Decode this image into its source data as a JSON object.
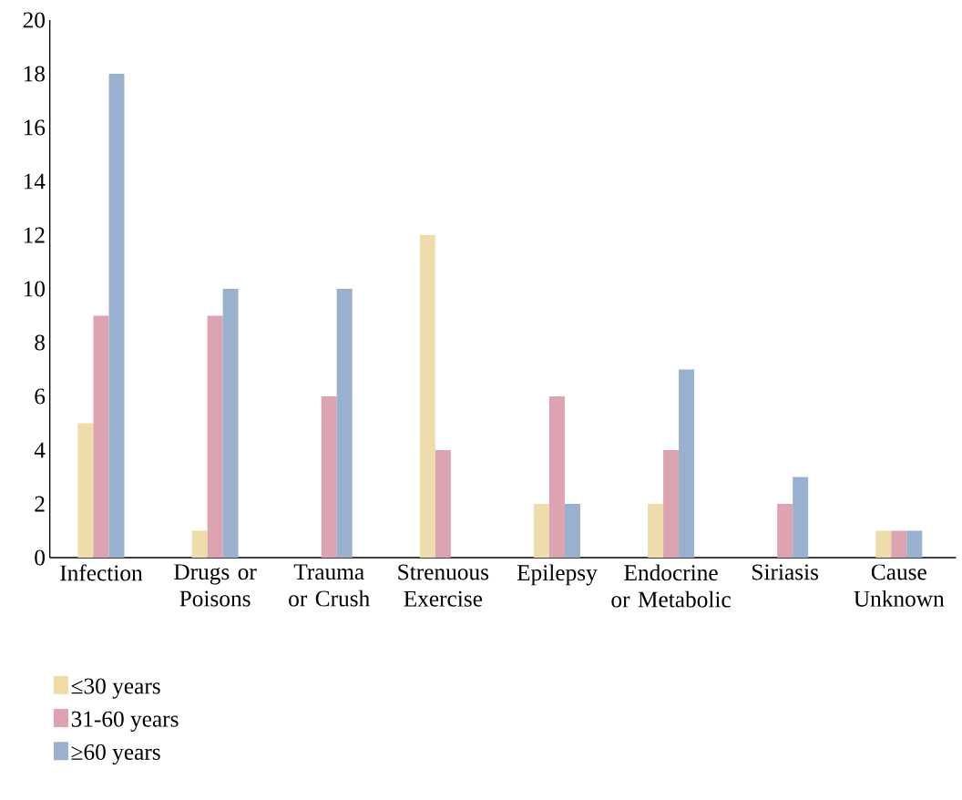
{
  "chart_data": {
    "type": "bar",
    "categories": [
      "Infection",
      "Drugs or Poisons",
      "Trauma or Crush",
      "Strenuous Exercise",
      "Epilepsy",
      "Endocrine or Metabolic",
      "Siriasis",
      "Cause Unknown"
    ],
    "series": [
      {
        "name": "≤30 years",
        "color": "#eedcaa",
        "values": [
          5,
          1,
          null,
          12,
          2,
          2,
          null,
          1
        ]
      },
      {
        "name": "31-60 years",
        "color": "#dca3b0",
        "values": [
          9,
          9,
          6,
          4,
          6,
          4,
          2,
          1
        ]
      },
      {
        "name": "≥60 years",
        "color": "#9ab0cf",
        "values": [
          18,
          10,
          10,
          null,
          2,
          7,
          3,
          1
        ]
      }
    ],
    "ylim": [
      0,
      20
    ],
    "yticks": [
      0,
      2,
      4,
      6,
      8,
      10,
      12,
      14,
      16,
      18,
      20
    ],
    "grid": false,
    "legend": "bottom left"
  }
}
